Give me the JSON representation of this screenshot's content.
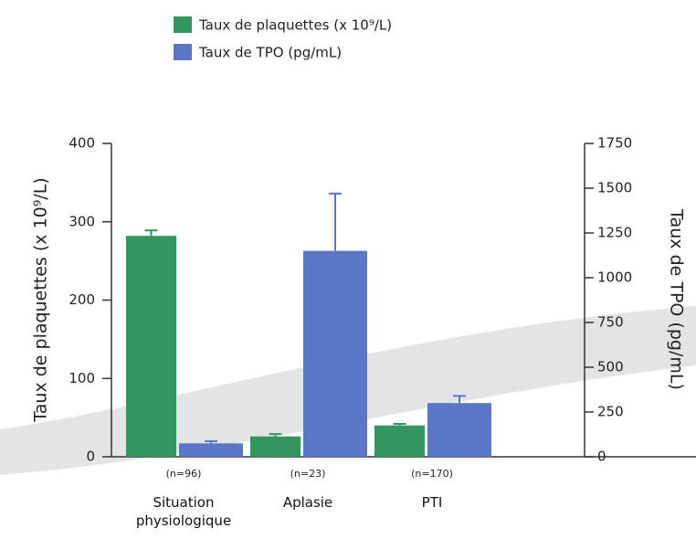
{
  "chart_data": {
    "type": "bar",
    "categories": [
      "Situation physiologique",
      "Aplasie",
      "PTI"
    ],
    "annotations": [
      "(n=96)",
      "(n=23)",
      "(n=170)"
    ],
    "series": [
      {
        "name": "Taux de plaquettes (x 10⁹/L)",
        "color": "#35955f",
        "values": [
          282,
          26,
          40
        ],
        "errors": [
          7,
          3,
          2
        ]
      },
      {
        "name": "Taux de TPO (pg/mL)",
        "color": "#5a76c6",
        "values": [
          75,
          1150,
          300
        ],
        "errors": [
          12,
          320,
          40
        ],
        "axis": "y2"
      }
    ],
    "ylabel": "Taux de plaquettes (x 10⁹/L)",
    "y2label": "Taux de TPO (pg/mL)",
    "ylim": [
      0,
      400
    ],
    "yticks": [
      0,
      100,
      200,
      300,
      400
    ],
    "y2lim": [
      0,
      1750
    ],
    "y2ticks": [
      0,
      250,
      500,
      750,
      1000,
      1250,
      1500,
      1750
    ],
    "legend": "top"
  }
}
